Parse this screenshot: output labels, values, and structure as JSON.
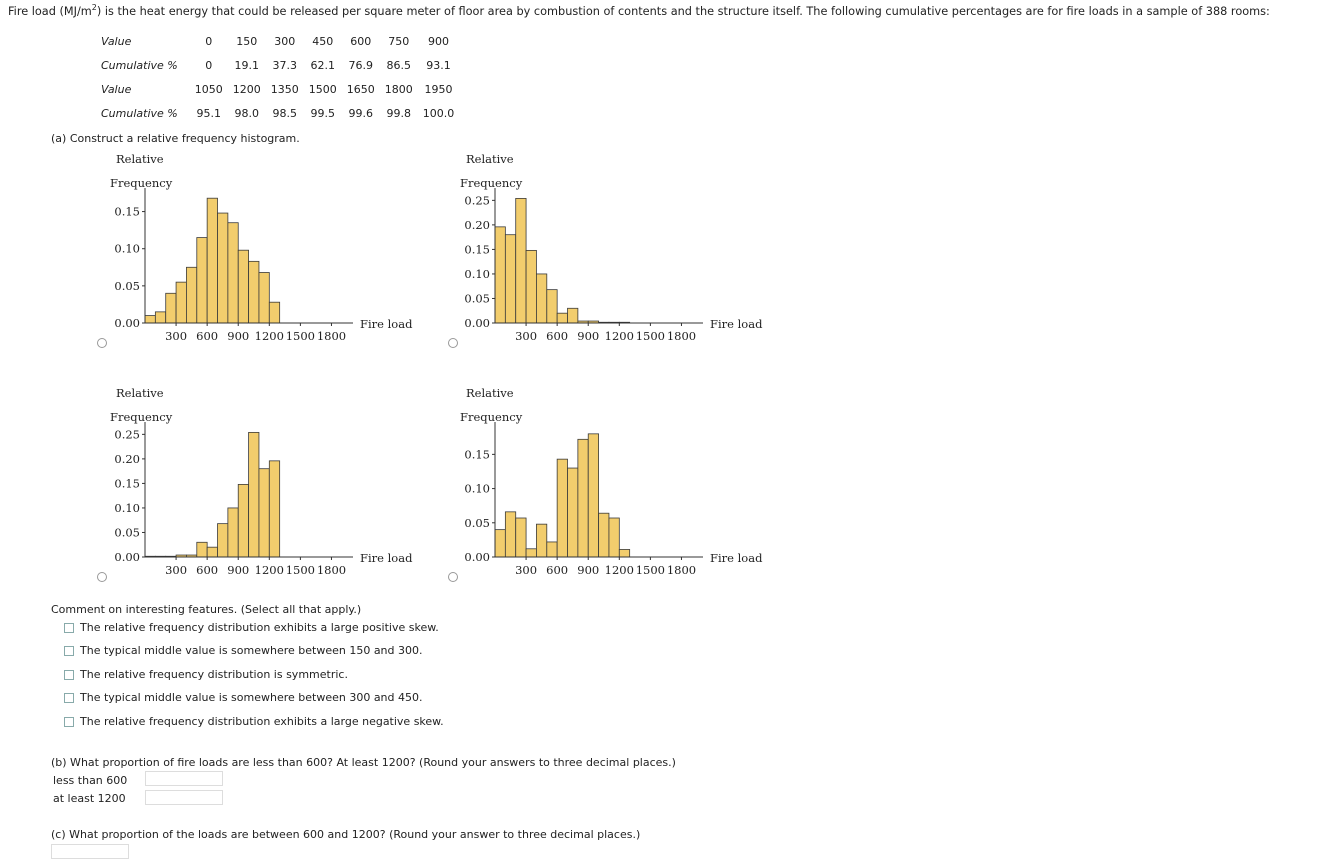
{
  "intro": {
    "before": "Fire load (MJ/m",
    "sup": "2",
    "after": ") is the heat energy that could be released per square meter of floor area by combustion of contents and the structure itself. The following cumulative percentages are for fire loads in a sample of 388 rooms:"
  },
  "cumulative_table": {
    "value_label": "Value",
    "cum_label": "Cumulative %",
    "row1_values": [
      "0",
      "150",
      "300",
      "450",
      "600",
      "750",
      "900"
    ],
    "row1_cum": [
      "0",
      "19.1",
      "37.3",
      "62.1",
      "76.9",
      "86.5",
      "93.1"
    ],
    "row2_values": [
      "1050",
      "1200",
      "1350",
      "1500",
      "1650",
      "1800",
      "1950"
    ],
    "row2_cum": [
      "95.1",
      "98.0",
      "98.5",
      "99.5",
      "99.6",
      "99.8",
      "100.0"
    ]
  },
  "part_a": {
    "prompt": "(a) Construct a relative frequency histogram."
  },
  "chart_common": {
    "ylabel_line1": "Relative",
    "ylabel_line2": "Frequency",
    "xlabel": "Fire load"
  },
  "chart_data": [
    {
      "type": "bar",
      "bin_width": 100,
      "x_start": 0,
      "values": [
        0.01,
        0.015,
        0.04,
        0.055,
        0.075,
        0.115,
        0.168,
        0.148,
        0.135,
        0.098,
        0.083,
        0.068,
        0.028
      ],
      "yticks": [
        "0.00",
        "0.05",
        "0.10",
        "0.15"
      ],
      "xticks": [
        "300",
        "600",
        "900",
        "1200",
        "1500",
        "1800"
      ],
      "ylim": [
        0,
        0.175
      ]
    },
    {
      "type": "bar",
      "bin_width": 100,
      "x_start": 0,
      "values": [
        0.196,
        0.18,
        0.254,
        0.148,
        0.1,
        0.068,
        0.02,
        0.03,
        0.004,
        0.004,
        0.0015,
        0.0015,
        0.0015
      ],
      "yticks": [
        "0.00",
        "0.05",
        "0.10",
        "0.15",
        "0.20",
        "0.25"
      ],
      "xticks": [
        "300",
        "600",
        "900",
        "1200",
        "1500",
        "1800"
      ],
      "ylim": [
        0,
        0.265
      ]
    },
    {
      "type": "bar",
      "bin_width": 100,
      "x_start": 0,
      "values": [
        0.0015,
        0.0015,
        0.0015,
        0.004,
        0.004,
        0.03,
        0.02,
        0.068,
        0.1,
        0.148,
        0.254,
        0.18,
        0.196
      ],
      "yticks": [
        "0.00",
        "0.05",
        "0.10",
        "0.15",
        "0.20",
        "0.25"
      ],
      "xticks": [
        "300",
        "600",
        "900",
        "1200",
        "1500",
        "1800"
      ],
      "ylim": [
        0,
        0.265
      ]
    },
    {
      "type": "bar",
      "bin_width": 100,
      "x_start": 0,
      "values": [
        0.04,
        0.066,
        0.057,
        0.012,
        0.048,
        0.022,
        0.143,
        0.13,
        0.172,
        0.18,
        0.064,
        0.057,
        0.011
      ],
      "yticks": [
        "0.00",
        "0.05",
        "0.10",
        "0.15"
      ],
      "xticks": [
        "300",
        "600",
        "900",
        "1200",
        "1500",
        "1800"
      ],
      "ylim": [
        0,
        0.19
      ]
    }
  ],
  "comment": {
    "prompt": "Comment on interesting features. (Select all that apply.)",
    "options": [
      "The relative frequency distribution exhibits a large positive skew.",
      "The typical middle value is somewhere between 150 and 300.",
      "The relative frequency distribution is symmetric.",
      "The typical middle value is somewhere between 300 and 450.",
      "The relative frequency distribution exhibits a large negative skew."
    ]
  },
  "part_b": {
    "prompt": "(b) What proportion of fire loads are less than 600? At least 1200? (Round your answers to three decimal places.)",
    "less_label": "less than 600",
    "least_label": "at least 1200"
  },
  "part_c": {
    "prompt": "(c) What proportion of the loads are between 600 and 1200? (Round your answer to three decimal places.)"
  }
}
